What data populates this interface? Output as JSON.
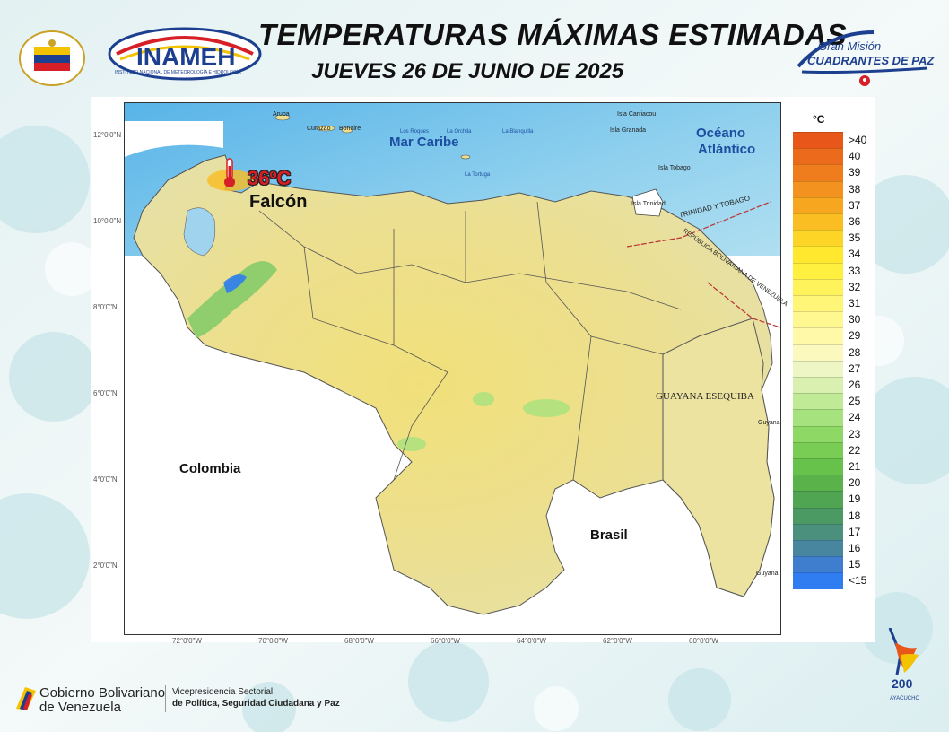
{
  "header": {
    "title": "TEMPERATURAS MÁXIMAS ESTIMADAS",
    "date": "JUEVES 26 DE JUNIO DE 2025"
  },
  "logos": {
    "inameh": "INAMEH",
    "inameh_subtitle": "INSTITUTO NACIONAL DE METEOROLOGÍA E HIDROLOGÍA",
    "mision_line1": "Gran Misión",
    "mision_line2": "CUADRANTES DE PAZ",
    "bicentenario": "200",
    "bicentenario_sub": "AYACUCHO"
  },
  "map": {
    "highlight_temp": "36ºC",
    "highlight_place": "Falcón",
    "labels": {
      "mar_caribe": "Mar Caribe",
      "oceano_1": "Océano",
      "oceano_2": "Atlántico",
      "colombia": "Colombia",
      "brasil": "Brasil",
      "guayana": "GUAYANA ESEQUIBA",
      "guyana_1": "Guyana",
      "guyana_2": "Guyana",
      "trinidad_border": "TRINIDAD Y TOBAGO",
      "rep_border": "REPÚBLICA BOLIVARIANA DE VENEZUELA",
      "aruba": "Aruba",
      "curazao": "Curazao",
      "bonaire": "Bonaire",
      "los_roques": "Los Roques",
      "la_orchila": "La Orchila",
      "la_blanquilla": "La Blanquilla",
      "la_tortuga": "La Tortuga",
      "carriacou": "Isla Carriacou",
      "granada": "Isla Granada",
      "tobago": "Isla Tobago",
      "trinidad": "Isla Trinidad"
    },
    "lat_ticks": [
      "12°0'0\"N",
      "10°0'0\"N",
      "8°0'0\"N",
      "6°0'0\"N",
      "4°0'0\"N",
      "2°0'0\"N"
    ],
    "lon_ticks": [
      "72°0'0\"W",
      "70°0'0\"W",
      "68°0'0\"W",
      "66°0'0\"W",
      "64°0'0\"W",
      "62°0'0\"W",
      "60°0'0\"W"
    ]
  },
  "legend": {
    "unit": "°C",
    "items": [
      {
        "label": ">40",
        "color": "#e8561a"
      },
      {
        "label": "40",
        "color": "#ec6a1c"
      },
      {
        "label": "39",
        "color": "#f07d1d"
      },
      {
        "label": "38",
        "color": "#f4921f"
      },
      {
        "label": "37",
        "color": "#f7a620"
      },
      {
        "label": "36",
        "color": "#fabd22"
      },
      {
        "label": "35",
        "color": "#fdd526"
      },
      {
        "label": "34",
        "color": "#ffe82e"
      },
      {
        "label": "33",
        "color": "#fff040"
      },
      {
        "label": "32",
        "color": "#fff35c"
      },
      {
        "label": "31",
        "color": "#fff577"
      },
      {
        "label": "30",
        "color": "#fff790"
      },
      {
        "label": "29",
        "color": "#fff9a8"
      },
      {
        "label": "28",
        "color": "#fbf9bd"
      },
      {
        "label": "27",
        "color": "#eef6c6"
      },
      {
        "label": "26",
        "color": "#d9f0b0"
      },
      {
        "label": "25",
        "color": "#c0ea96"
      },
      {
        "label": "24",
        "color": "#a6e27d"
      },
      {
        "label": "23",
        "color": "#8ed866"
      },
      {
        "label": "22",
        "color": "#79cd55"
      },
      {
        "label": "21",
        "color": "#67c24b"
      },
      {
        "label": "20",
        "color": "#5ab34a"
      },
      {
        "label": "19",
        "color": "#50a552"
      },
      {
        "label": "18",
        "color": "#4b9a63"
      },
      {
        "label": "17",
        "color": "#4a907c"
      },
      {
        "label": "16",
        "color": "#4886a0"
      },
      {
        "label": "15",
        "color": "#3f7dcf"
      },
      {
        "label": "<15",
        "color": "#2f7df0"
      }
    ]
  },
  "footer": {
    "gob_line1": "Gobierno Bolivariano",
    "gob_line2": "de Venezuela",
    "vice_line1": "Vicepresidencia Sectorial",
    "vice_line2": "de Política, Seguridad Ciudadana y Paz"
  },
  "colors": {
    "sea": "#9fd3ee",
    "land_yellow": "#f2e58a",
    "land_pale": "#ece6a8",
    "neighbor": "#ffffff",
    "accent_red": "#d61f26"
  }
}
